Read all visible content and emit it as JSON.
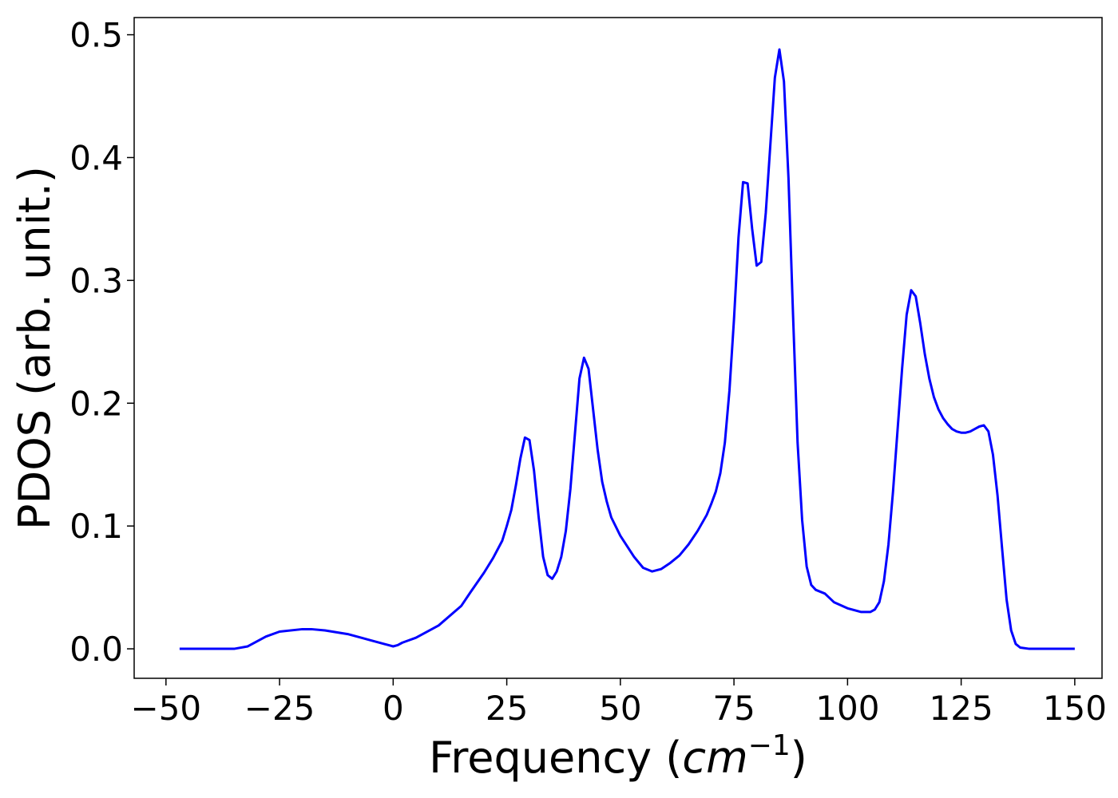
{
  "chart_data": {
    "type": "line",
    "xlabel": "Frequency ",
    "xlabel_math": "cm",
    "xlabel_sup": "−1",
    "ylabel": "PDOS (arb. unit.)",
    "xlim": [
      -57,
      156
    ],
    "ylim": [
      -0.024,
      0.514
    ],
    "xticks": [
      -50,
      -25,
      0,
      25,
      50,
      75,
      100,
      125,
      150
    ],
    "xtick_labels": [
      "−50",
      "−25",
      "0",
      "25",
      "50",
      "75",
      "100",
      "125",
      "150"
    ],
    "yticks": [
      0.0,
      0.1,
      0.2,
      0.3,
      0.4,
      0.5
    ],
    "ytick_labels": [
      "0.0",
      "0.1",
      "0.2",
      "0.3",
      "0.4",
      "0.5"
    ],
    "grid": false,
    "series": [
      {
        "color": "#0000ff",
        "x": [
          -47,
          -40,
          -35,
          -32,
          -30,
          -28,
          -25,
          -20,
          -18,
          -15,
          -10,
          -7,
          -5,
          -2,
          -1,
          0,
          1,
          2,
          5,
          10,
          15,
          17,
          20,
          22,
          24,
          25,
          26,
          27,
          28,
          29,
          30,
          31,
          32,
          33,
          34,
          35,
          36,
          37,
          38,
          39,
          40,
          41,
          42,
          43,
          44,
          45,
          46,
          47,
          48,
          50,
          53,
          55,
          57,
          59,
          61,
          63,
          65,
          67,
          69,
          70,
          71,
          72,
          73,
          74,
          75,
          76,
          77,
          78,
          79,
          80,
          81,
          82,
          83,
          84,
          85,
          86,
          87,
          88,
          89,
          90,
          91,
          92,
          93,
          95,
          97,
          100,
          103,
          105,
          106,
          107,
          108,
          109,
          110,
          111,
          112,
          113,
          114,
          115,
          116,
          117,
          118,
          119,
          120,
          121,
          122,
          123,
          124,
          125,
          126,
          127,
          128,
          129,
          130,
          131,
          132,
          133,
          134,
          135,
          136,
          137,
          138,
          140,
          145,
          150
        ],
        "y": [
          0.0,
          0.0,
          0.0,
          0.002,
          0.006,
          0.01,
          0.014,
          0.016,
          0.016,
          0.015,
          0.012,
          0.009,
          0.007,
          0.004,
          0.003,
          0.002,
          0.003,
          0.005,
          0.009,
          0.019,
          0.035,
          0.046,
          0.062,
          0.074,
          0.088,
          0.1,
          0.113,
          0.133,
          0.155,
          0.172,
          0.17,
          0.145,
          0.108,
          0.075,
          0.06,
          0.057,
          0.063,
          0.075,
          0.096,
          0.13,
          0.175,
          0.22,
          0.237,
          0.228,
          0.195,
          0.162,
          0.136,
          0.12,
          0.107,
          0.092,
          0.075,
          0.066,
          0.063,
          0.065,
          0.07,
          0.076,
          0.085,
          0.096,
          0.109,
          0.118,
          0.128,
          0.143,
          0.168,
          0.21,
          0.268,
          0.335,
          0.38,
          0.379,
          0.342,
          0.312,
          0.315,
          0.355,
          0.41,
          0.465,
          0.488,
          0.462,
          0.383,
          0.272,
          0.168,
          0.105,
          0.067,
          0.052,
          0.048,
          0.045,
          0.038,
          0.033,
          0.03,
          0.03,
          0.032,
          0.038,
          0.055,
          0.085,
          0.128,
          0.178,
          0.228,
          0.272,
          0.292,
          0.287,
          0.265,
          0.24,
          0.22,
          0.205,
          0.195,
          0.188,
          0.183,
          0.179,
          0.177,
          0.176,
          0.176,
          0.177,
          0.179,
          0.181,
          0.182,
          0.177,
          0.158,
          0.125,
          0.082,
          0.04,
          0.015,
          0.004,
          0.001,
          0.0,
          0.0,
          0.0
        ]
      }
    ]
  }
}
